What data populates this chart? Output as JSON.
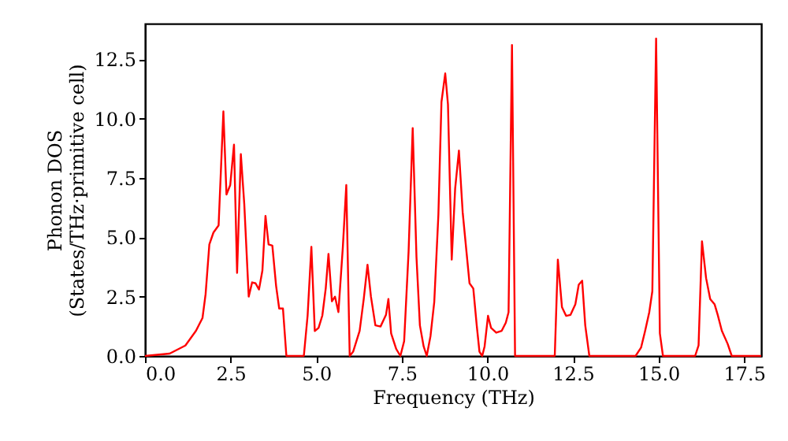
{
  "chart_data": {
    "type": "line",
    "xlabel": "Frequency (THz)",
    "ylabel": "Phonon DOS\n(States/THz·primitive cell)",
    "x": [
      0,
      0.72,
      1.18,
      1.49,
      1.68,
      1.77,
      1.88,
      2.0,
      2.15,
      2.29,
      2.38,
      2.49,
      2.6,
      2.69,
      2.8,
      2.9,
      3.03,
      3.13,
      3.23,
      3.33,
      3.43,
      3.52,
      3.61,
      3.72,
      3.83,
      3.92,
      4.03,
      4.13,
      4.64,
      4.75,
      4.86,
      4.96,
      5.07,
      5.18,
      5.28,
      5.36,
      5.46,
      5.55,
      5.65,
      5.78,
      5.88,
      5.98,
      6.08,
      6.27,
      6.39,
      6.5,
      6.6,
      6.73,
      6.88,
      7.04,
      7.11,
      7.19,
      7.34,
      7.46,
      7.57,
      7.7,
      7.82,
      7.93,
      8.03,
      8.14,
      8.23,
      8.34,
      8.45,
      8.57,
      8.66,
      8.77,
      8.85,
      8.96,
      9.06,
      9.17,
      9.28,
      9.39,
      9.48,
      9.59,
      9.69,
      9.77,
      9.85,
      9.92,
      10.02,
      10.11,
      10.26,
      10.42,
      10.54,
      10.62,
      10.72,
      10.81,
      11.97,
      12.06,
      12.18,
      12.3,
      12.43,
      12.57,
      12.67,
      12.77,
      12.86,
      12.98,
      14.33,
      14.49,
      14.61,
      14.73,
      14.82,
      14.93,
      15.04,
      15.13,
      16.07,
      16.17,
      16.27,
      16.39,
      16.51,
      16.64,
      16.73,
      16.85,
      17.02,
      17.14,
      18.0
    ],
    "series": [
      {
        "color": "#ff0000",
        "values": [
          0,
          0.1,
          0.44,
          1.06,
          1.6,
          2.6,
          4.7,
          5.2,
          5.5,
          10.3,
          6.8,
          7.2,
          8.9,
          3.5,
          8.5,
          6.4,
          2.5,
          3.1,
          3.06,
          2.8,
          3.6,
          5.9,
          4.7,
          4.65,
          2.95,
          2.0,
          2.0,
          0,
          0,
          1.7,
          4.6,
          1.05,
          1.18,
          1.7,
          2.85,
          4.3,
          2.3,
          2.5,
          1.85,
          4.6,
          7.2,
          0,
          0.18,
          1.06,
          2.4,
          3.84,
          2.5,
          1.29,
          1.24,
          1.73,
          2.4,
          0.95,
          0.29,
          0,
          0.62,
          4.4,
          9.6,
          4.17,
          1.29,
          0.4,
          0,
          0.84,
          2.28,
          5.94,
          10.7,
          11.9,
          10.6,
          4.06,
          7.05,
          8.65,
          6.05,
          4.4,
          3.06,
          2.84,
          1.29,
          0.18,
          0,
          0.4,
          1.69,
          1.18,
          0.98,
          1.06,
          1.4,
          1.84,
          13.1,
          0,
          0,
          4.06,
          2.06,
          1.69,
          1.73,
          2.17,
          3.0,
          3.17,
          1.29,
          0,
          0,
          0.35,
          1.06,
          1.84,
          2.73,
          13.37,
          0.95,
          0,
          0,
          0.44,
          4.83,
          3.28,
          2.4,
          2.17,
          1.73,
          1.06,
          0.51,
          0,
          0
        ]
      }
    ],
    "xlim": [
      0,
      18
    ],
    "ylim": [
      0,
      14
    ],
    "xticks": [
      {
        "value": 0,
        "label": "0.0"
      },
      2.5,
      {
        "value": 5,
        "label": "5.0"
      },
      7.5,
      {
        "value": 10,
        "label": "10.0"
      },
      12.5,
      {
        "value": 15,
        "label": "15.0"
      },
      17.5
    ],
    "yticks": [
      {
        "value": 0,
        "label": "0.0"
      },
      2.5,
      {
        "value": 5,
        "label": "5.0"
      },
      7.5,
      {
        "value": 10,
        "label": "10.0"
      },
      12.5
    ],
    "grid": false,
    "marker": "none",
    "line_style": "solid"
  }
}
